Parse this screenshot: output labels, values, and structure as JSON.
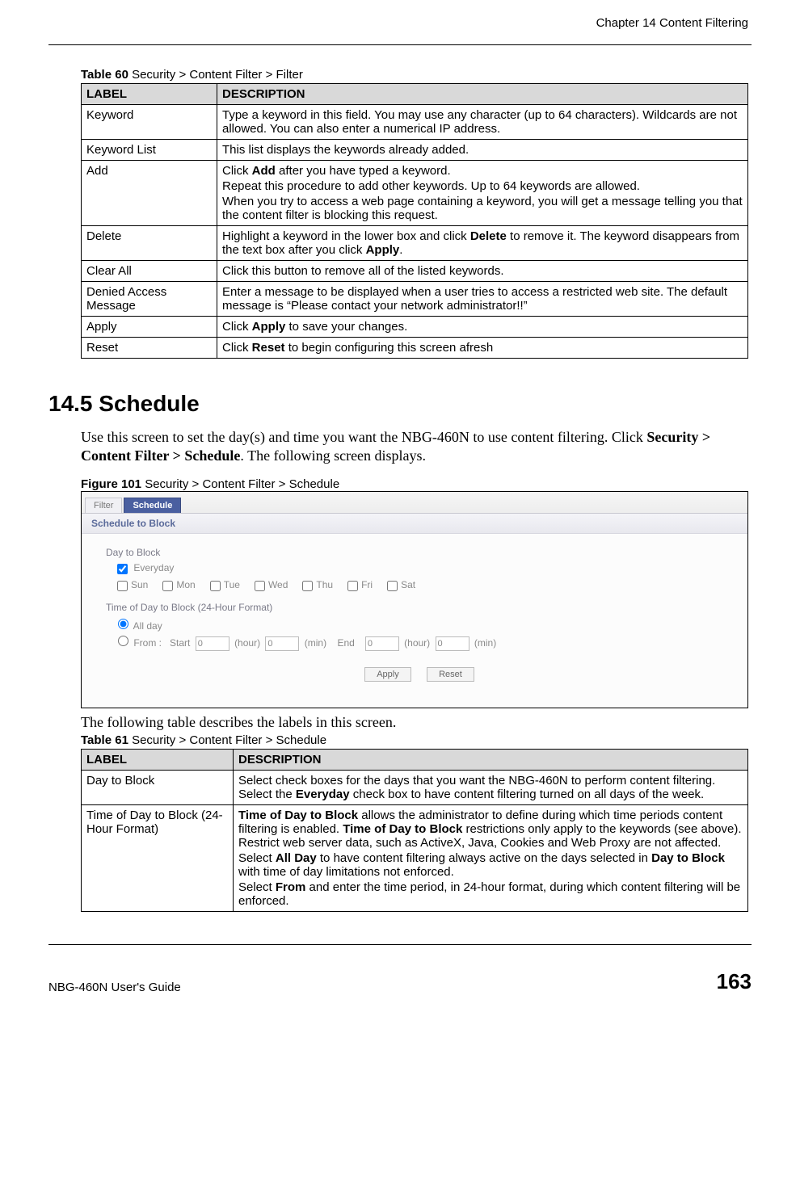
{
  "page": {
    "chapter_header": "Chapter 14 Content Filtering",
    "footer_left": "NBG-460N User's Guide",
    "footer_page": "163"
  },
  "table60": {
    "caption_bold": "Table 60",
    "caption_rest": "   Security > Content Filter > Filter",
    "header_label": "LABEL",
    "header_desc": "DESCRIPTION",
    "rows": [
      {
        "label": "Keyword",
        "desc": "Type a keyword in this field. You may use any character (up to 64 characters). Wildcards are not allowed. You can also enter a numerical IP address."
      },
      {
        "label": "Keyword List",
        "desc": "This list displays the keywords already added."
      },
      {
        "label": "Add",
        "desc_parts": [
          {
            "pre": "Click ",
            "bold": "Add",
            "post": " after you have typed a keyword."
          },
          {
            "plain": "Repeat this procedure to add other keywords. Up to 64 keywords are allowed."
          },
          {
            "plain": "When you try to access a web page containing a keyword, you will get a message telling you that the content filter is blocking this request."
          }
        ]
      },
      {
        "label": "Delete",
        "desc_parts": [
          {
            "pre": "Highlight a keyword in the lower box and click ",
            "bold": "Delete",
            "post": " to remove it. The keyword disappears from the text box after you click ",
            "bold2": "Apply",
            "post2": "."
          }
        ]
      },
      {
        "label": "Clear All",
        "desc": "Click this button to remove all of the listed keywords."
      },
      {
        "label": "Denied Access Message",
        "desc": "Enter a message to be displayed when a user tries to access a restricted web site. The default message is “Please contact your network administrator!!”"
      },
      {
        "label": "Apply",
        "desc_parts": [
          {
            "pre": "Click ",
            "bold": "Apply",
            "post": " to save your changes."
          }
        ]
      },
      {
        "label": "Reset",
        "desc_parts": [
          {
            "pre": "Click ",
            "bold": "Reset",
            "post": " to begin configuring this screen afresh"
          }
        ]
      }
    ]
  },
  "section": {
    "heading": "14.5  Schedule",
    "para_pre": "Use this screen to set the day(s) and time you want the NBG-460N to use content filtering. Click ",
    "para_bold": "Security > Content Filter > Schedule",
    "para_post": ". The following screen displays.",
    "after_figure": "The following table describes the labels in this screen."
  },
  "figure": {
    "caption_bold": "Figure 101",
    "caption_rest": "   Security > Content Filter > Schedule",
    "tab_inactive": "Filter",
    "tab_active": "Schedule",
    "panel_title": "Schedule to Block",
    "day_label": "Day to Block",
    "everyday_label": "Everyday",
    "days": [
      "Sun",
      "Mon",
      "Tue",
      "Wed",
      "Thu",
      "Fri",
      "Sat"
    ],
    "time_label": "Time of Day to Block (24-Hour Format)",
    "allday_label": "All day",
    "from_label": "From :",
    "start_label": "Start",
    "end_label": "End",
    "hour_label": "(hour)",
    "min_label": "(min)",
    "value_zero": "0",
    "btn_apply": "Apply",
    "btn_reset": "Reset"
  },
  "table61": {
    "caption_bold": "Table 61",
    "caption_rest": "   Security > Content Filter > Schedule",
    "header_label": "LABEL",
    "header_desc": "DESCRIPTION",
    "rows": [
      {
        "label": "Day to Block",
        "desc_parts": [
          {
            "pre": "Select check boxes for the days that you want the NBG-460N to perform content filtering. Select the ",
            "bold": "Everyday",
            "post": " check box to have content filtering turned on all days of the week."
          }
        ]
      },
      {
        "label": "Time of Day to Block (24-Hour Format)",
        "desc_parts": [
          {
            "bold": "Time of Day to Block",
            "post": " allows the administrator to define during which time periods content filtering is enabled. ",
            "bold2": "Time of Day to Block",
            "post2": " restrictions only apply to the keywords (see above). Restrict web server data, such as ActiveX, Java, Cookies and Web Proxy are not affected."
          },
          {
            "pre": "Select  ",
            "bold": "All Day",
            "post": " to have content filtering always active on the days selected in ",
            "bold2": "Day to Block",
            "post2": " with time of day limitations not enforced."
          },
          {
            "pre": "Select ",
            "bold": "From",
            "post": " and enter the time period, in 24-hour format, during which content filtering will be enforced."
          }
        ]
      }
    ]
  }
}
